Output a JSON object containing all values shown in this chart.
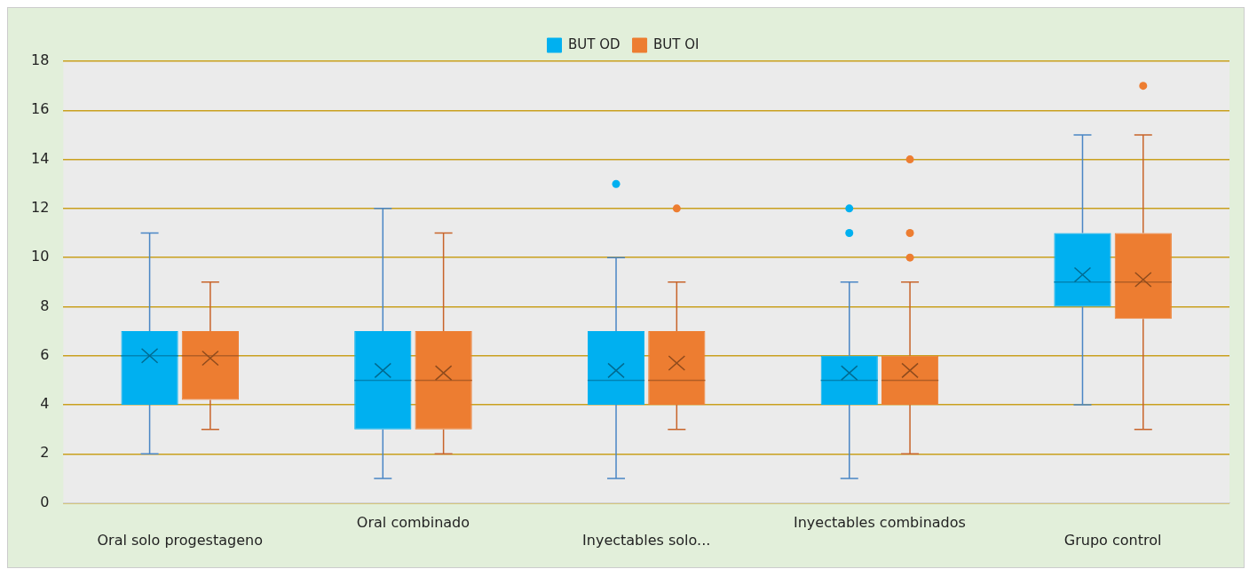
{
  "chart_data": {
    "type": "box",
    "categories": [
      "Oral solo progestageno",
      "Oral combinado",
      "Inyectables solo...",
      "Inyectables combinados",
      "Grupo control"
    ],
    "series": [
      {
        "name": "BUT OD",
        "color": "#00b0f0",
        "boxes": [
          {
            "low": 2,
            "q1": 4,
            "median": 6,
            "q3": 7,
            "high": 11,
            "mean": 6.0
          },
          {
            "low": 1,
            "q1": 3,
            "median": 5,
            "q3": 7,
            "high": 12,
            "mean": 5.4
          },
          {
            "low": 1,
            "q1": 4,
            "median": 5,
            "q3": 7,
            "high": 10,
            "mean": 5.4,
            "outliers": [
              13
            ]
          },
          {
            "low": 1,
            "q1": 4,
            "median": 5,
            "q3": 6,
            "high": 9,
            "mean": 5.3,
            "outliers": [
              11,
              12
            ]
          },
          {
            "low": 4,
            "q1": 8,
            "median": 9,
            "q3": 11,
            "high": 15,
            "mean": 9.3
          }
        ]
      },
      {
        "name": "BUT OI",
        "color": "#ed7d31",
        "boxes": [
          {
            "low": 3,
            "q1": 4.2,
            "median": 6,
            "q3": 7,
            "high": 9,
            "mean": 5.9
          },
          {
            "low": 2,
            "q1": 3,
            "median": 5,
            "q3": 7,
            "high": 11,
            "mean": 5.3
          },
          {
            "low": 3,
            "q1": 4,
            "median": 5,
            "q3": 7,
            "high": 9,
            "mean": 5.7,
            "outliers": [
              12
            ]
          },
          {
            "low": 2,
            "q1": 4,
            "median": 5,
            "q3": 6,
            "high": 9,
            "mean": 5.4,
            "outliers": [
              10,
              11,
              14
            ]
          },
          {
            "low": 3,
            "q1": 7.5,
            "median": 9,
            "q3": 11,
            "high": 15,
            "mean": 9.1,
            "outliers": [
              17
            ]
          }
        ]
      }
    ],
    "ylim": [
      0,
      18
    ],
    "yticks": [
      0,
      2,
      4,
      6,
      8,
      10,
      12,
      14,
      16,
      18
    ],
    "grid": "y",
    "legend": "top"
  }
}
